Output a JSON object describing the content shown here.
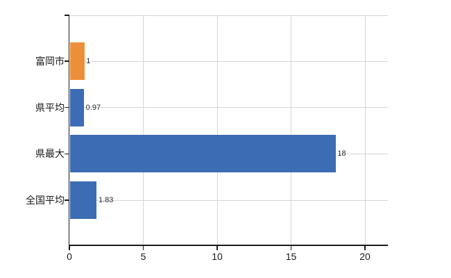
{
  "colors": {
    "bar_blue": "#3C6CB3",
    "bar_orange": "#EC8F3A",
    "grid": "#D4D7D2",
    "axis": "#1a1a1a",
    "text": "#1a1a1a"
  },
  "chart_data": {
    "type": "bar",
    "orientation": "horizontal",
    "title": "",
    "categories": [
      "富岡市",
      "県平均",
      "県最大",
      "全国平均"
    ],
    "values": [
      1,
      0.97,
      18,
      1.83
    ],
    "value_labels": [
      "1",
      "0.97",
      "18",
      "1.83"
    ],
    "bar_colors": [
      "#EC8F3A",
      "#3C6CB3",
      "#3C6CB3",
      "#3C6CB3"
    ],
    "highlighted_category": "富岡市",
    "xlim": [
      0,
      20
    ],
    "x_tick_values": [
      0,
      5,
      10,
      15,
      20
    ],
    "x_tick_labels": [
      "0",
      "5",
      "10",
      "15",
      "20"
    ],
    "grid": true,
    "legend": false
  }
}
